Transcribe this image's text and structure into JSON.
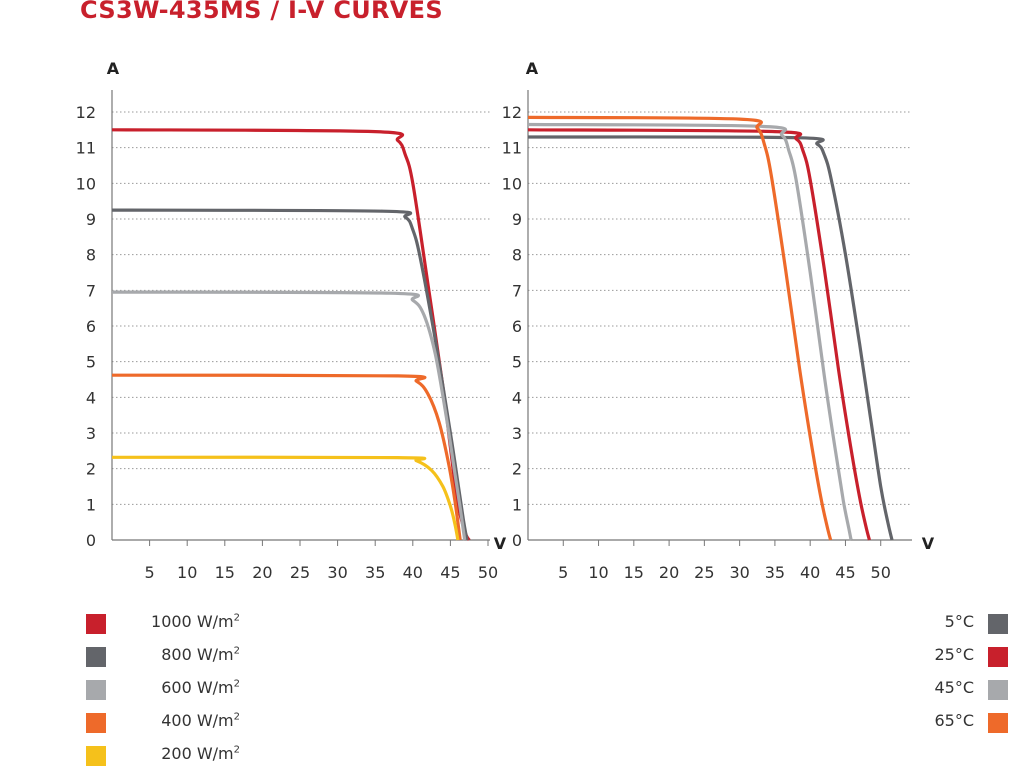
{
  "title": "CS3W-435MS / I-V CURVES",
  "chart_data": [
    {
      "type": "line",
      "xlabel": "V",
      "ylabel": "A",
      "xlim": [
        0,
        50
      ],
      "ylim": [
        0,
        12
      ],
      "xticks": [
        "5",
        "10",
        "15",
        "20",
        "25",
        "30",
        "35",
        "40",
        "45",
        "50"
      ],
      "yticks": [
        "0",
        "1",
        "2",
        "3",
        "4",
        "5",
        "6",
        "7",
        "8",
        "9",
        "10",
        "11",
        "12"
      ],
      "grid": "horizontal dotted",
      "legend_position": "bottom-left",
      "series": [
        {
          "name": "1000 W/m²",
          "color": "#c8202c",
          "x": [
            0,
            35,
            38,
            39,
            40,
            42,
            44,
            45,
            46,
            47,
            47.5
          ],
          "y": [
            11.5,
            11.45,
            11.2,
            10.8,
            10.0,
            7.2,
            4.3,
            2.6,
            1.0,
            0.2,
            0
          ]
        },
        {
          "name": "800 W/m²",
          "color": "#63656a",
          "x": [
            0,
            36,
            39,
            40,
            41,
            43,
            45,
            46,
            46.7,
            47.2
          ],
          "y": [
            9.25,
            9.22,
            9.05,
            8.7,
            7.9,
            5.6,
            3.0,
            1.6,
            0.6,
            0
          ]
        },
        {
          "name": "600 W/m²",
          "color": "#a7a9ac",
          "x": [
            0,
            37,
            40,
            41.5,
            43,
            44.5,
            45.5,
            46.3,
            46.9
          ],
          "y": [
            6.95,
            6.92,
            6.72,
            6.3,
            5.2,
            3.4,
            2.0,
            0.9,
            0
          ]
        },
        {
          "name": "400 W/m²",
          "color": "#ee6a2a",
          "x": [
            0,
            38,
            40.5,
            42,
            43.5,
            44.8,
            45.6,
            46.3
          ],
          "y": [
            4.62,
            4.6,
            4.45,
            4.1,
            3.3,
            2.1,
            1.1,
            0
          ]
        },
        {
          "name": "200 W/m²",
          "color": "#f5c11b",
          "x": [
            0,
            38,
            40.5,
            42.5,
            44,
            45,
            45.6,
            46.0
          ],
          "y": [
            2.32,
            2.31,
            2.22,
            1.95,
            1.5,
            0.95,
            0.45,
            0
          ]
        }
      ]
    },
    {
      "type": "line",
      "xlabel": "V",
      "ylabel": "A",
      "xlim": [
        0,
        55
      ],
      "ylim": [
        0,
        12
      ],
      "xticks": [
        "5",
        "10",
        "15",
        "20",
        "25",
        "30",
        "35",
        "40",
        "45",
        "50"
      ],
      "yticks": [
        "0",
        "1",
        "2",
        "3",
        "4",
        "5",
        "6",
        "7",
        "8",
        "9",
        "10",
        "11",
        "12"
      ],
      "grid": "horizontal dotted",
      "legend_position": "bottom-right",
      "series": [
        {
          "name": "5°C",
          "color": "#63656a",
          "x": [
            0,
            38,
            41,
            42,
            43,
            45,
            47,
            48.5,
            50,
            51,
            51.6
          ],
          "y": [
            11.3,
            11.28,
            11.1,
            10.8,
            10.1,
            8.0,
            5.5,
            3.5,
            1.5,
            0.5,
            0
          ]
        },
        {
          "name": "25°C",
          "color": "#c8202c",
          "x": [
            0,
            35,
            38,
            39,
            40,
            42,
            44,
            45.5,
            47,
            48,
            48.4
          ],
          "y": [
            11.5,
            11.45,
            11.25,
            10.9,
            10.1,
            7.6,
            4.8,
            2.9,
            1.2,
            0.3,
            0
          ]
        },
        {
          "name": "45°C",
          "color": "#a7a9ac",
          "x": [
            0,
            33,
            36,
            37,
            38,
            40,
            42,
            43.5,
            44.7,
            45.5,
            45.8
          ],
          "y": [
            11.65,
            11.6,
            11.35,
            10.9,
            10.1,
            7.5,
            4.6,
            2.6,
            1.1,
            0.3,
            0
          ]
        },
        {
          "name": "65°C",
          "color": "#ee6a2a",
          "x": [
            0,
            30,
            32.5,
            33.5,
            34.5,
            36.5,
            38.5,
            40,
            41.5,
            42.5,
            42.9
          ],
          "y": [
            11.85,
            11.8,
            11.55,
            11.1,
            10.2,
            7.6,
            4.8,
            2.9,
            1.2,
            0.3,
            0
          ]
        }
      ]
    }
  ],
  "legend_left": [
    {
      "label": "1000 W/m",
      "sup": "2",
      "color": "#c8202c"
    },
    {
      "label": "800 W/m",
      "sup": "2",
      "color": "#63656a"
    },
    {
      "label": "600 W/m",
      "sup": "2",
      "color": "#a7a9ac"
    },
    {
      "label": "400 W/m",
      "sup": "2",
      "color": "#ee6a2a"
    },
    {
      "label": "200 W/m",
      "sup": "2",
      "color": "#f5c11b"
    }
  ],
  "legend_right": [
    {
      "label": "5°C",
      "color": "#63656a"
    },
    {
      "label": "25°C",
      "color": "#c8202c"
    },
    {
      "label": "45°C",
      "color": "#a7a9ac"
    },
    {
      "label": "65°C",
      "color": "#ee6a2a"
    }
  ]
}
